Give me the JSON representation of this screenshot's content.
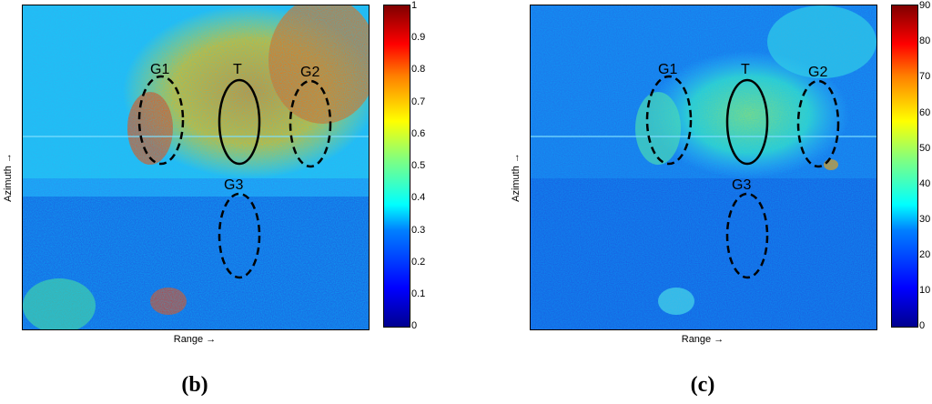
{
  "panels": [
    {
      "caption": "(b)",
      "xlabel": "Range →",
      "ylabel": "Azimuth →",
      "colorbar": {
        "ticks": [
          "1",
          "0.9",
          "0.8",
          "0.7",
          "0.6",
          "0.5",
          "0.4",
          "0.3",
          "0.2",
          "0.1",
          "0"
        ]
      },
      "regions": [
        "G1",
        "T",
        "G2",
        "G3"
      ]
    },
    {
      "caption": "(c)",
      "xlabel": "Range →",
      "ylabel": "Azimuth →",
      "colorbar": {
        "ticks": [
          "90",
          "80",
          "70",
          "60",
          "50",
          "40",
          "30",
          "20",
          "10",
          "0"
        ]
      },
      "regions": [
        "G1",
        "T",
        "G2",
        "G3"
      ]
    }
  ],
  "colors": {
    "colormap": [
      "#00008f",
      "#0000ff",
      "#0080ff",
      "#00ffff",
      "#80ff80",
      "#ffff00",
      "#ff8000",
      "#ff0000",
      "#800000"
    ]
  }
}
